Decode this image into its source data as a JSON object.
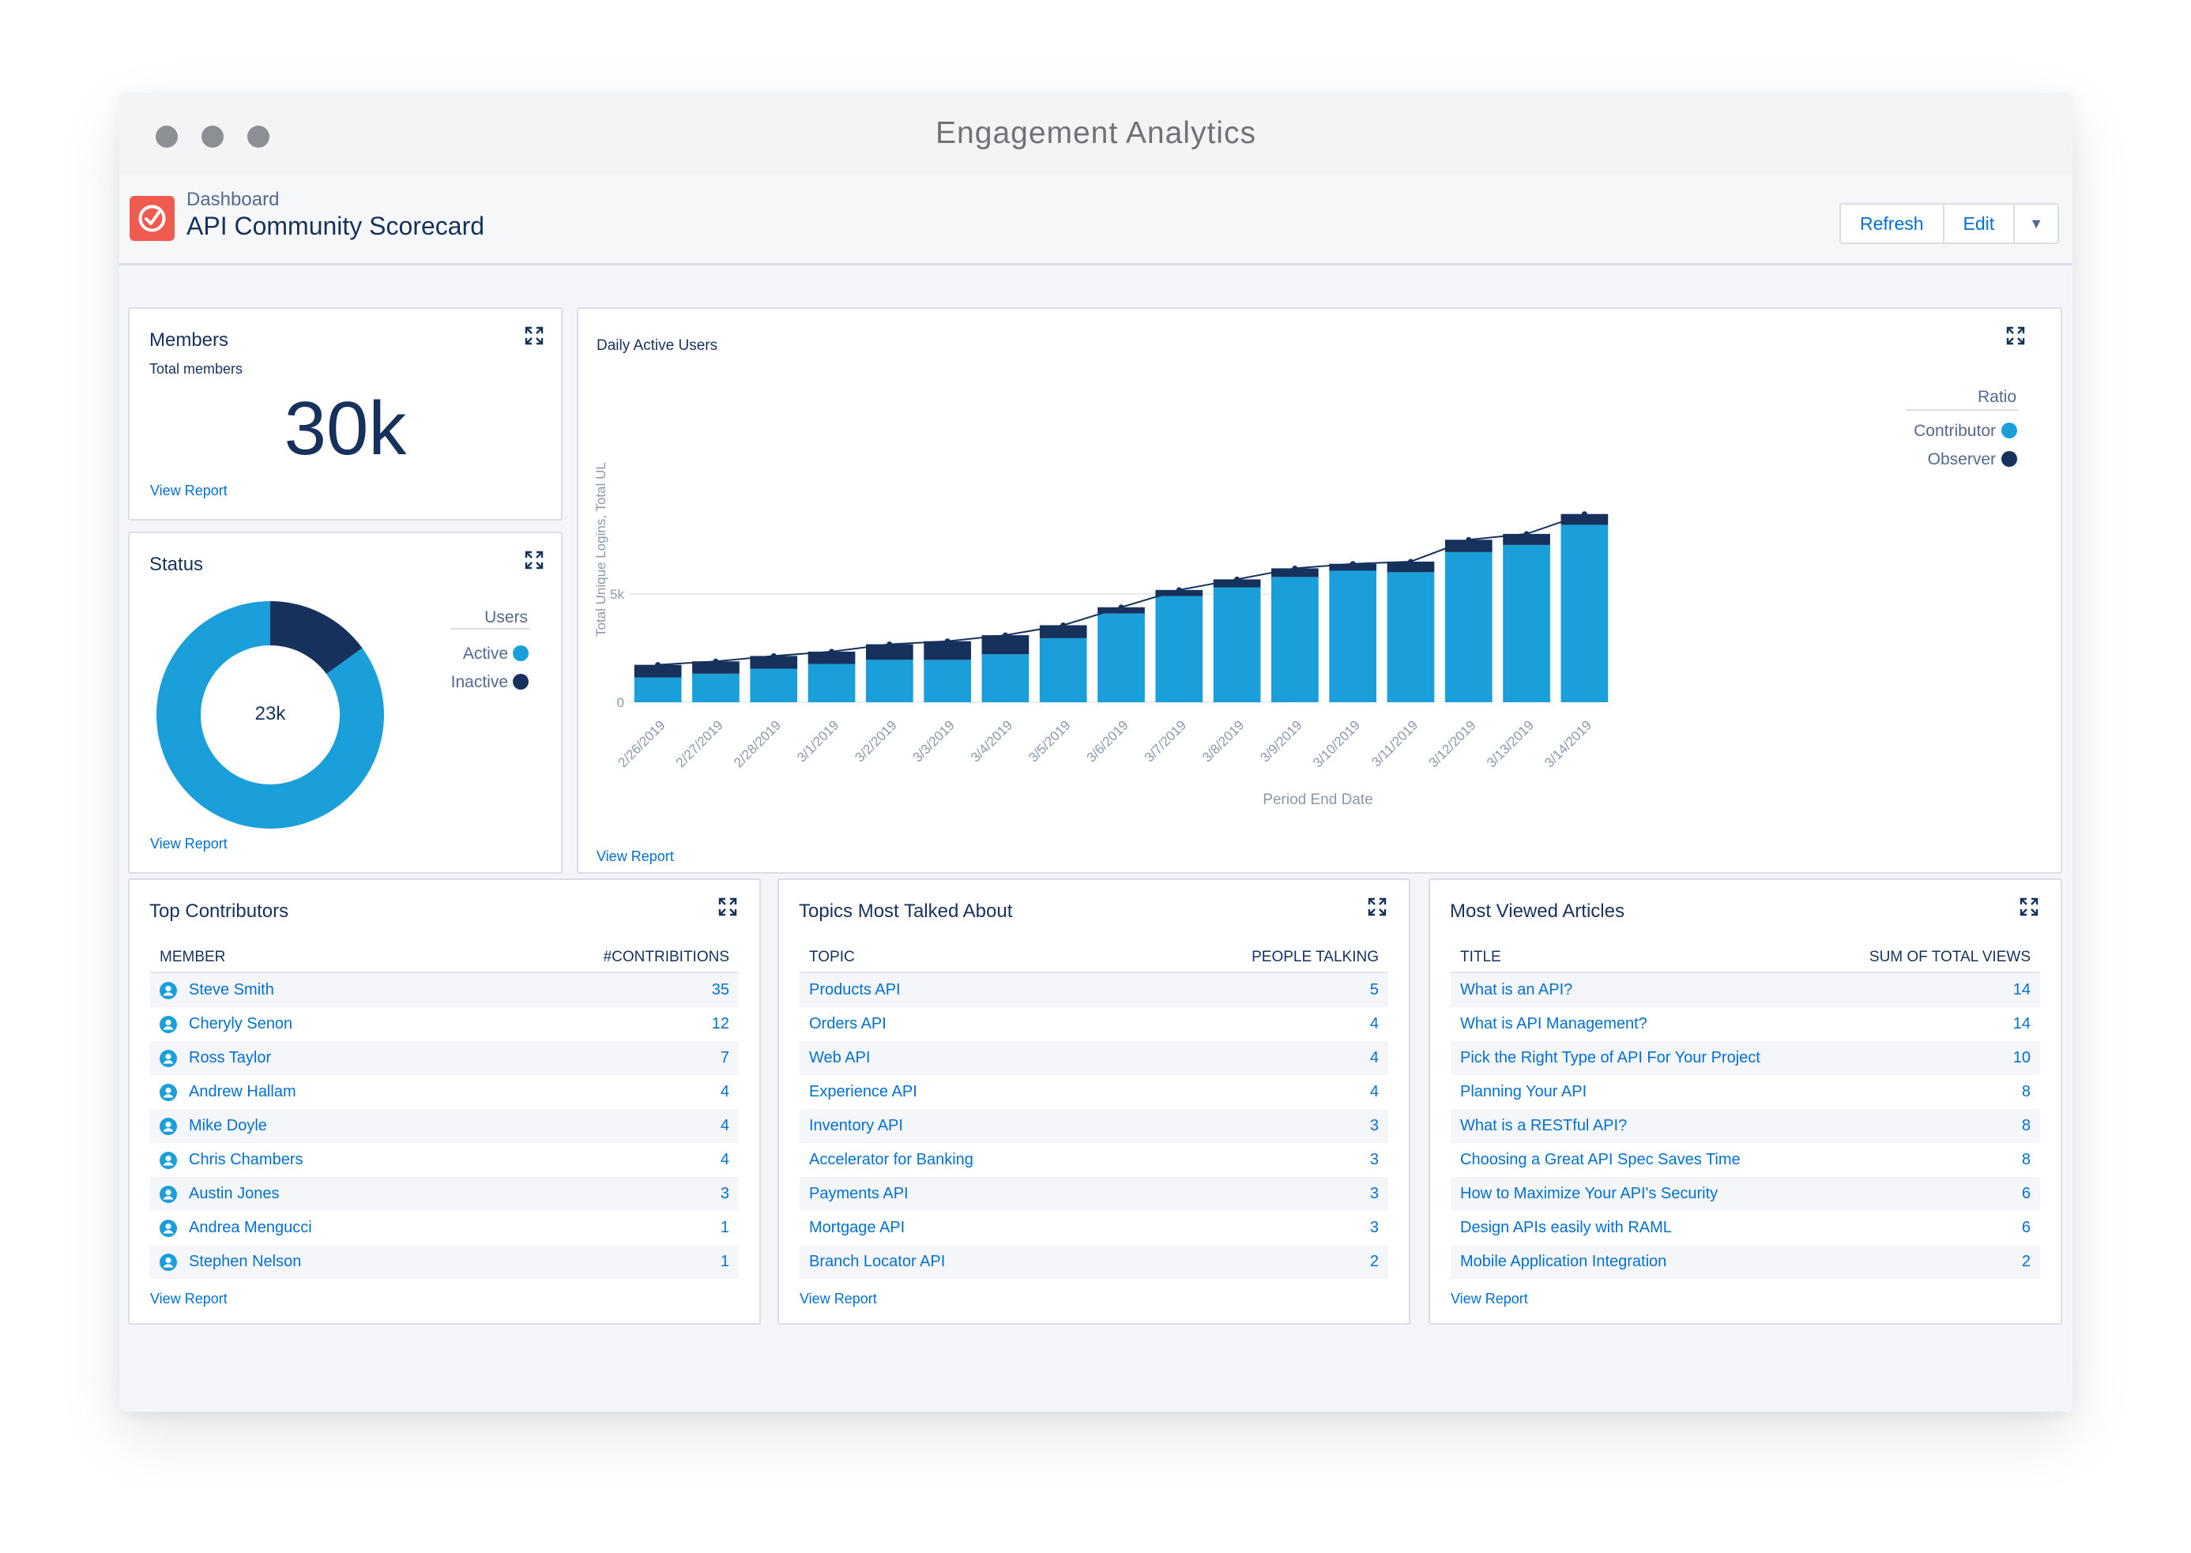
{
  "window": {
    "title": "Engagement Analytics"
  },
  "header": {
    "subtitle": "Dashboard",
    "title": "API Community Scorecard",
    "refresh_label": "Refresh",
    "edit_label": "Edit",
    "menu_glyph": "▼"
  },
  "view_report_label": "View Report",
  "members": {
    "title": "Members",
    "subtitle": "Total members",
    "value": "30k"
  },
  "status": {
    "title": "Status",
    "center_label": "23k",
    "legend_title": "Users",
    "segments": [
      {
        "name": "Active",
        "value": 0.85,
        "color": "#1b9fda"
      },
      {
        "name": "Inactive",
        "value": 0.15,
        "color": "#16325c"
      }
    ]
  },
  "chart_data": {
    "type": "bar",
    "title": "Daily Active Users",
    "xlabel": "Period End Date",
    "ylabel": "Total Unique Logins, Total UL",
    "ylim": [
      0,
      9200
    ],
    "yticks": [
      0,
      5000
    ],
    "ytick_labels": [
      "0",
      "5k"
    ],
    "legend_title": "Ratio",
    "legend_position": "right",
    "grid": true,
    "categories": [
      "2/26/2019",
      "2/27/2019",
      "2/28/2019",
      "3/1/2019",
      "3/2/2019",
      "3/3/2019",
      "3/4/2019",
      "3/5/2019",
      "3/6/2019",
      "3/7/2019",
      "3/8/2019",
      "3/9/2019",
      "3/10/2019",
      "3/11/2019",
      "3/12/2019",
      "3/13/2019",
      "3/14/2019"
    ],
    "series": [
      {
        "name": "Contributor",
        "color": "#1b9fda",
        "values": [
          1150,
          1320,
          1550,
          1770,
          1960,
          1960,
          2220,
          2960,
          4100,
          4900,
          5310,
          5790,
          6080,
          6010,
          6940,
          7270,
          8200
        ]
      },
      {
        "name": "Observer",
        "color": "#16325c",
        "values": [
          580,
          570,
          590,
          570,
          720,
          860,
          880,
          600,
          290,
          290,
          370,
          400,
          320,
          490,
          570,
          510,
          500
        ]
      }
    ],
    "line": {
      "values": [
        1730,
        1890,
        2140,
        2340,
        2680,
        2820,
        3100,
        3560,
        4390,
        5190,
        5680,
        6190,
        6400,
        6500,
        7510,
        7780,
        8700
      ]
    }
  },
  "top_contributors": {
    "title": "Top Contributors",
    "columns": [
      "MEMBER",
      "#CONTRIBITIONS"
    ],
    "rows": [
      {
        "name": "Steve Smith",
        "value": "35"
      },
      {
        "name": "Cheryly Senon",
        "value": "12"
      },
      {
        "name": "Ross Taylor",
        "value": "7"
      },
      {
        "name": "Andrew Hallam",
        "value": "4"
      },
      {
        "name": "Mike Doyle",
        "value": "4"
      },
      {
        "name": "Chris Chambers",
        "value": "4"
      },
      {
        "name": "Austin Jones",
        "value": "3"
      },
      {
        "name": "Andrea Mengucci",
        "value": "1"
      },
      {
        "name": "Stephen Nelson",
        "value": "1"
      }
    ]
  },
  "topics": {
    "title": "Topics Most Talked About",
    "columns": [
      "TOPIC",
      "PEOPLE TALKING"
    ],
    "rows": [
      {
        "name": "Products API",
        "value": "5"
      },
      {
        "name": "Orders API",
        "value": "4"
      },
      {
        "name": "Web API",
        "value": "4"
      },
      {
        "name": "Experience API",
        "value": "4"
      },
      {
        "name": "Inventory API",
        "value": "3"
      },
      {
        "name": "Accelerator for Banking",
        "value": "3"
      },
      {
        "name": "Payments API",
        "value": "3"
      },
      {
        "name": "Mortgage  API",
        "value": "3"
      },
      {
        "name": "Branch Locator API",
        "value": "2"
      }
    ]
  },
  "articles": {
    "title": "Most Viewed Articles",
    "columns": [
      "TITLE",
      "SUM OF TOTAL VIEWS"
    ],
    "rows": [
      {
        "name": "What is an API?",
        "value": "14"
      },
      {
        "name": "What is API Management?",
        "value": "14"
      },
      {
        "name": "Pick the Right Type of API For Your Project",
        "value": "10"
      },
      {
        "name": "Planning Your API",
        "value": "8"
      },
      {
        "name": "What is a RESTful API?",
        "value": "8"
      },
      {
        "name": "Choosing a Great API Spec Saves Time",
        "value": "8"
      },
      {
        "name": "How to Maximize Your API's Security",
        "value": "6"
      },
      {
        "name": "Design APIs easily with RAML",
        "value": "6"
      },
      {
        "name": "Mobile Application Integration",
        "value": "2"
      }
    ]
  }
}
